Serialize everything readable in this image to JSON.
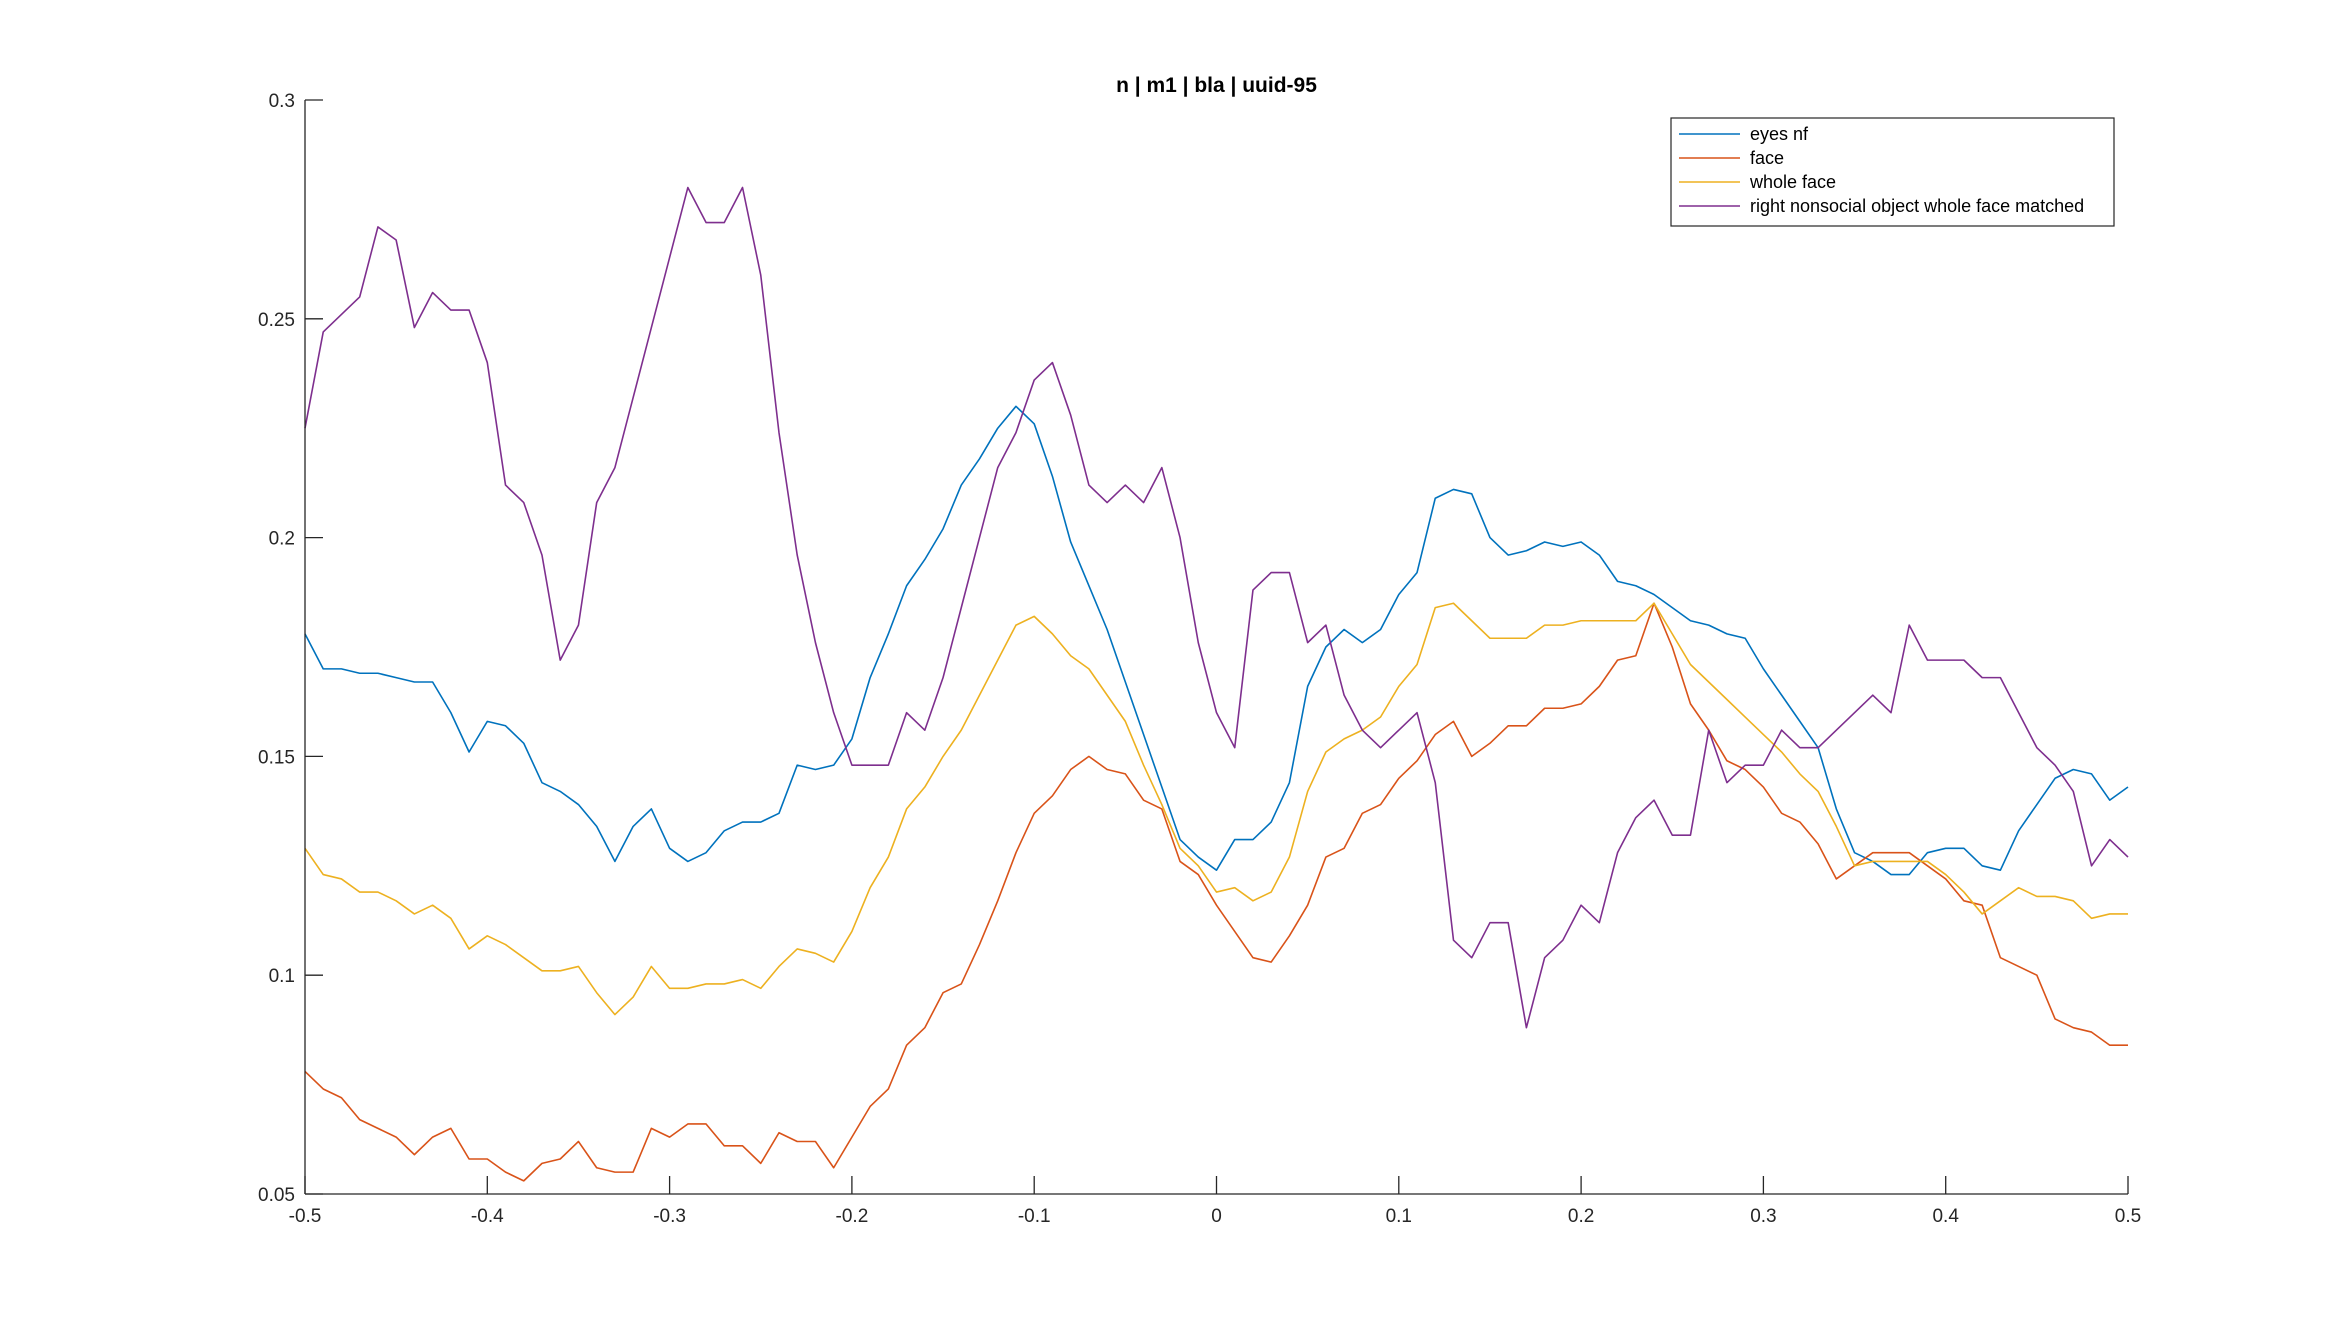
{
  "chart_data": {
    "type": "line",
    "title": "n | m1 | bla | uuid-95",
    "xlabel": "",
    "ylabel": "",
    "xlim": [
      -0.5,
      0.5
    ],
    "ylim": [
      0.05,
      0.3
    ],
    "xticks": [
      -0.5,
      -0.4,
      -0.3,
      -0.2,
      -0.1,
      0,
      0.1,
      0.2,
      0.3,
      0.4,
      0.5
    ],
    "xtick_labels": [
      "-0.5",
      "-0.4",
      "-0.3",
      "-0.2",
      "-0.1",
      "0",
      "0.1",
      "0.2",
      "0.3",
      "0.4",
      "0.5"
    ],
    "yticks": [
      0.05,
      0.1,
      0.15,
      0.2,
      0.25,
      0.3
    ],
    "ytick_labels": [
      "0.05",
      "0.1",
      "0.15",
      "0.2",
      "0.25",
      "0.3"
    ],
    "grid": false,
    "legend_position": "top-right",
    "x_start": -0.5,
    "x_step": 0.01,
    "series": [
      {
        "name": "eyes nf",
        "color": "#0072BD",
        "values": [
          0.178,
          0.17,
          0.17,
          0.169,
          0.169,
          0.168,
          0.167,
          0.167,
          0.16,
          0.151,
          0.158,
          0.157,
          0.153,
          0.144,
          0.142,
          0.139,
          0.134,
          0.126,
          0.134,
          0.138,
          0.129,
          0.126,
          0.128,
          0.133,
          0.135,
          0.135,
          0.137,
          0.148,
          0.147,
          0.148,
          0.154,
          0.168,
          0.178,
          0.189,
          0.195,
          0.202,
          0.212,
          0.218,
          0.225,
          0.23,
          0.226,
          0.214,
          0.199,
          0.189,
          0.179,
          0.167,
          0.155,
          0.143,
          0.131,
          0.127,
          0.124,
          0.131,
          0.131,
          0.135,
          0.144,
          0.166,
          0.175,
          0.179,
          0.176,
          0.179,
          0.187,
          0.192,
          0.209,
          0.211,
          0.21,
          0.2,
          0.196,
          0.197,
          0.199,
          0.198,
          0.199,
          0.196,
          0.19,
          0.189,
          0.187,
          0.184,
          0.181,
          0.18,
          0.178,
          0.177,
          0.17,
          0.164,
          0.158,
          0.152,
          0.138,
          0.128,
          0.126,
          0.123,
          0.123,
          0.128,
          0.129,
          0.129,
          0.125,
          0.124,
          0.133,
          0.139,
          0.145,
          0.147,
          0.146,
          0.14,
          0.143
        ]
      },
      {
        "name": "face",
        "color": "#D95319",
        "values": [
          0.078,
          0.074,
          0.072,
          0.067,
          0.065,
          0.063,
          0.059,
          0.063,
          0.065,
          0.058,
          0.058,
          0.055,
          0.053,
          0.057,
          0.058,
          0.062,
          0.056,
          0.055,
          0.055,
          0.065,
          0.063,
          0.066,
          0.066,
          0.061,
          0.061,
          0.057,
          0.064,
          0.062,
          0.062,
          0.056,
          0.063,
          0.07,
          0.074,
          0.084,
          0.088,
          0.096,
          0.098,
          0.107,
          0.117,
          0.128,
          0.137,
          0.141,
          0.147,
          0.15,
          0.147,
          0.146,
          0.14,
          0.138,
          0.126,
          0.123,
          0.116,
          0.11,
          0.104,
          0.103,
          0.109,
          0.116,
          0.127,
          0.129,
          0.137,
          0.139,
          0.145,
          0.149,
          0.155,
          0.158,
          0.15,
          0.153,
          0.157,
          0.157,
          0.161,
          0.161,
          0.162,
          0.166,
          0.172,
          0.173,
          0.185,
          0.175,
          0.162,
          0.156,
          0.149,
          0.147,
          0.143,
          0.137,
          0.135,
          0.13,
          0.122,
          0.125,
          0.128,
          0.128,
          0.128,
          0.125,
          0.122,
          0.117,
          0.116,
          0.104,
          0.102,
          0.1,
          0.09,
          0.088,
          0.087,
          0.084,
          0.084
        ]
      },
      {
        "name": "whole face",
        "color": "#EDB120",
        "values": [
          0.129,
          0.123,
          0.122,
          0.119,
          0.119,
          0.117,
          0.114,
          0.116,
          0.113,
          0.106,
          0.109,
          0.107,
          0.104,
          0.101,
          0.101,
          0.102,
          0.096,
          0.091,
          0.095,
          0.102,
          0.097,
          0.097,
          0.098,
          0.098,
          0.099,
          0.097,
          0.102,
          0.106,
          0.105,
          0.103,
          0.11,
          0.12,
          0.127,
          0.138,
          0.143,
          0.15,
          0.156,
          0.164,
          0.172,
          0.18,
          0.182,
          0.178,
          0.173,
          0.17,
          0.164,
          0.158,
          0.148,
          0.139,
          0.129,
          0.125,
          0.119,
          0.12,
          0.117,
          0.119,
          0.127,
          0.142,
          0.151,
          0.154,
          0.156,
          0.159,
          0.166,
          0.171,
          0.184,
          0.185,
          0.181,
          0.177,
          0.177,
          0.177,
          0.18,
          0.18,
          0.181,
          0.181,
          0.181,
          0.181,
          0.185,
          0.178,
          0.171,
          0.167,
          0.163,
          0.159,
          0.155,
          0.151,
          0.146,
          0.142,
          0.134,
          0.125,
          0.126,
          0.126,
          0.126,
          0.126,
          0.123,
          0.119,
          0.114,
          0.117,
          0.12,
          0.118,
          0.118,
          0.117,
          0.113,
          0.114,
          0.114
        ]
      },
      {
        "name": "right nonsocial object whole face matched",
        "color": "#7E2F8E",
        "values": [
          0.225,
          0.247,
          0.251,
          0.255,
          0.271,
          0.268,
          0.248,
          0.256,
          0.252,
          0.252,
          0.24,
          0.212,
          0.208,
          0.196,
          0.172,
          0.18,
          0.208,
          0.216,
          0.232,
          0.248,
          0.264,
          0.28,
          0.272,
          0.272,
          0.28,
          0.26,
          0.224,
          0.196,
          0.176,
          0.16,
          0.148,
          0.148,
          0.148,
          0.16,
          0.156,
          0.168,
          0.184,
          0.2,
          0.216,
          0.224,
          0.236,
          0.24,
          0.228,
          0.212,
          0.208,
          0.212,
          0.208,
          0.216,
          0.2,
          0.176,
          0.16,
          0.152,
          0.188,
          0.192,
          0.192,
          0.176,
          0.18,
          0.164,
          0.156,
          0.152,
          0.156,
          0.16,
          0.144,
          0.108,
          0.104,
          0.112,
          0.112,
          0.088,
          0.104,
          0.108,
          0.116,
          0.112,
          0.128,
          0.136,
          0.14,
          0.132,
          0.132,
          0.156,
          0.144,
          0.148,
          0.148,
          0.156,
          0.152,
          0.152,
          0.156,
          0.16,
          0.164,
          0.16,
          0.18,
          0.172,
          0.172,
          0.172,
          0.168,
          0.168,
          0.16,
          0.152,
          0.148,
          0.142,
          0.125,
          0.131,
          0.127
        ]
      }
    ]
  }
}
